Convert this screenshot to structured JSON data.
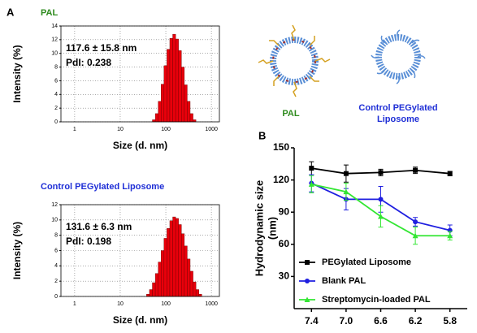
{
  "panel_labels": [
    "A",
    "B"
  ],
  "illustrations": {
    "labels": [
      {
        "lines": [
          "PAL"
        ],
        "color": "#2e8b1e"
      },
      {
        "lines": [
          "Control PEGylated",
          "Liposome"
        ],
        "color": "#1f2fd6"
      }
    ]
  },
  "chart_data": [
    {
      "type": "histogram",
      "title": "PAL",
      "title_color": "#2e8b1e",
      "annotations": [
        "117.6 ± 15.8 nm",
        "PdI: 0.238"
      ],
      "xlabel": "Size (d. nm)",
      "ylabel": "Intensity (%)",
      "xscale": "log",
      "xlim": [
        0.5,
        1500
      ],
      "xticks": [
        1,
        10,
        100,
        1000
      ],
      "ylim": [
        0,
        14
      ],
      "yticks": [
        0,
        2,
        4,
        6,
        8,
        10,
        12,
        14
      ],
      "grid": true,
      "color": "#e8000b",
      "bins": [
        50.7,
        58.8,
        68.1,
        78.8,
        91.3,
        105.7,
        122.4,
        141.8,
        164.2,
        190.1,
        220.2,
        255.0,
        295.3,
        342.0,
        396.1,
        458.7
      ],
      "values": [
        0.3,
        1.2,
        3.0,
        5.5,
        8.2,
        10.6,
        12.2,
        12.8,
        12.1,
        10.4,
        8.0,
        5.4,
        3.0,
        1.2,
        0.3
      ]
    },
    {
      "type": "histogram",
      "title": "Control PEGylated Liposome",
      "title_color": "#1f2fd6",
      "annotations": [
        "131.6 ± 6.3 nm",
        "PdI: 0.198"
      ],
      "xlabel": "Size (d. nm)",
      "ylabel": "Intensity (%)",
      "xscale": "log",
      "xlim": [
        0.5,
        1500
      ],
      "xticks": [
        1,
        10,
        100,
        1000
      ],
      "ylim": [
        0,
        12
      ],
      "yticks": [
        0,
        2,
        4,
        6,
        8,
        10,
        12
      ],
      "grid": true,
      "color": "#e8000b",
      "bins": [
        37.8,
        43.8,
        50.7,
        58.8,
        68.1,
        78.8,
        91.3,
        105.7,
        122.4,
        141.8,
        164.2,
        190.1,
        220.2,
        255.0,
        295.3,
        342.0,
        396.1,
        458.7,
        531.2,
        615.1
      ],
      "values": [
        0.3,
        0.9,
        1.8,
        3.0,
        4.5,
        6.0,
        7.6,
        8.9,
        9.9,
        10.4,
        10.2,
        9.4,
        8.2,
        6.6,
        4.9,
        3.3,
        1.9,
        0.9,
        0.3
      ]
    },
    {
      "type": "line",
      "ylabel": [
        "Hydrodynamic size",
        "(nm)"
      ],
      "categories": [
        "7.4",
        "7.0",
        "6.6",
        "6.2",
        "5.8"
      ],
      "ylim": [
        0,
        150
      ],
      "yticks": [
        30,
        60,
        90,
        120,
        150
      ],
      "legend": "lower left",
      "series": [
        {
          "name": "PEGylated Liposome",
          "color": "#000000",
          "marker": "square",
          "values": [
            131,
            126,
            127,
            129,
            126
          ],
          "errors": [
            6,
            8,
            3,
            3,
            2
          ]
        },
        {
          "name": "Blank PAL",
          "color": "#1f1fe0",
          "marker": "circle",
          "values": [
            117,
            102,
            102,
            81,
            73
          ],
          "errors": [
            8,
            10,
            12,
            4,
            5
          ]
        },
        {
          "name": "Streptomycin-loaded PAL",
          "color": "#33e633",
          "marker": "triangle",
          "values": [
            116,
            109,
            86,
            68,
            68
          ],
          "errors": [
            8,
            8,
            10,
            8,
            4
          ]
        }
      ]
    }
  ]
}
